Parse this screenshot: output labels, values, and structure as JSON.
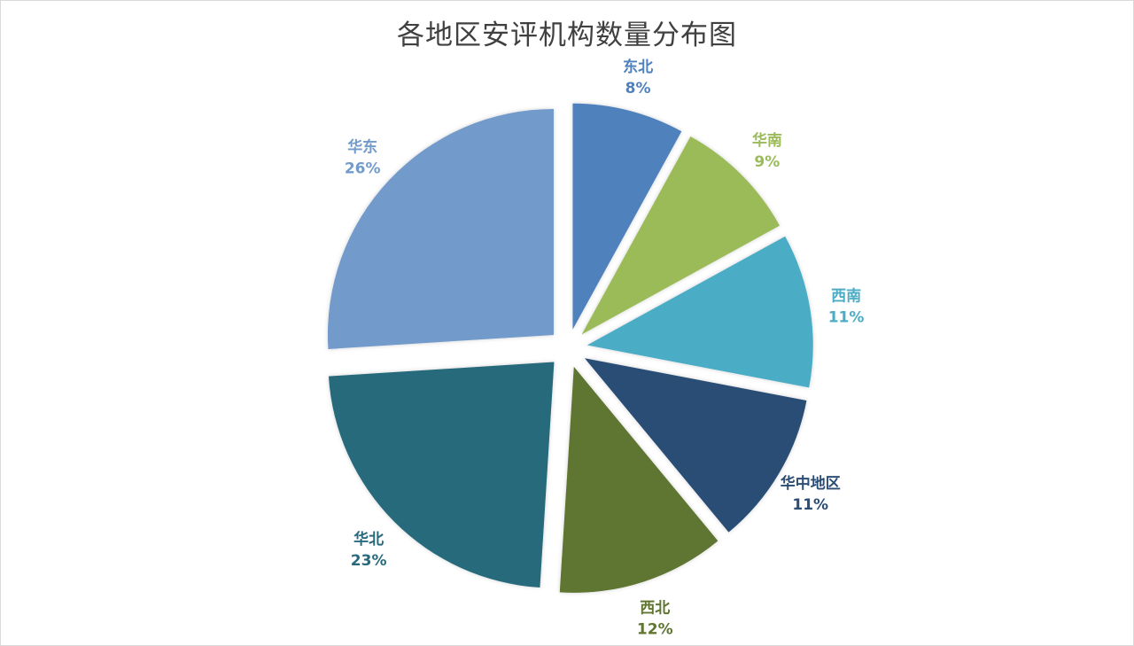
{
  "chart_data": {
    "type": "pie",
    "title": "各地区安评机构数量分布图",
    "exploded": true,
    "slices": [
      {
        "label": "东北",
        "value": 8,
        "percent_label": "8%",
        "color": "#4f81bd"
      },
      {
        "label": "华南",
        "value": 9,
        "percent_label": "9%",
        "color": "#9bbb59"
      },
      {
        "label": "西南",
        "value": 11,
        "percent_label": "11%",
        "color": "#4bacc6"
      },
      {
        "label": "华中地区",
        "value": 11,
        "percent_label": "11%",
        "color": "#2c4d75"
      },
      {
        "label": "西北",
        "value": 12,
        "percent_label": "12%",
        "color": "#5f7530"
      },
      {
        "label": "华北",
        "value": 23,
        "percent_label": "23%",
        "color": "#276a7c"
      },
      {
        "label": "华东",
        "value": 26,
        "percent_label": "26%",
        "color": "#729aca"
      }
    ]
  }
}
